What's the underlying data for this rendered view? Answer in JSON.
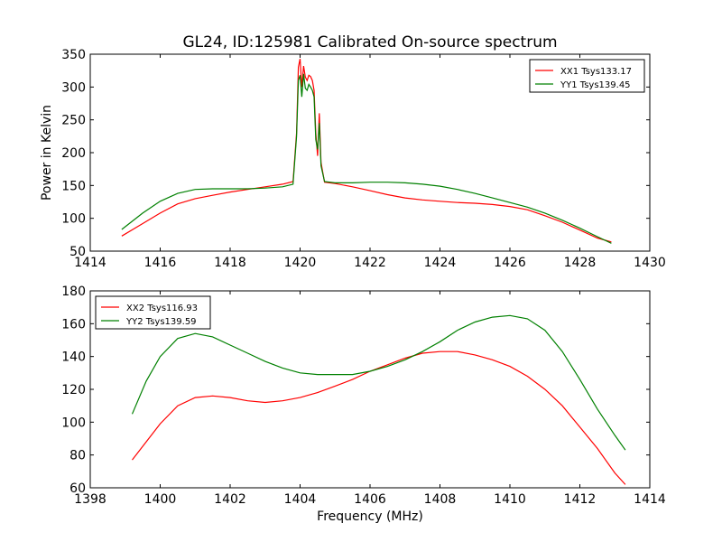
{
  "figure": {
    "title": "GL24, ID:125981 Calibrated On-source spectrum"
  },
  "chart_data": [
    {
      "type": "line",
      "title": "GL24, ID:125981 Calibrated On-source spectrum",
      "xlabel": "",
      "ylabel": "Power in Kelvin",
      "xlim": [
        1414,
        1430
      ],
      "ylim": [
        50,
        350
      ],
      "xticks": [
        "1414",
        "1416",
        "1418",
        "1420",
        "1422",
        "1424",
        "1426",
        "1428",
        "1430"
      ],
      "yticks": [
        "50",
        "100",
        "150",
        "200",
        "250",
        "300",
        "350"
      ],
      "legend_position": "upper right",
      "grid": false,
      "series": [
        {
          "name": "XX1 Tsys133.17",
          "color": "#ff0000",
          "x": [
            1414.9,
            1415.5,
            1416.0,
            1416.5,
            1417.0,
            1417.5,
            1418.0,
            1418.5,
            1419.0,
            1419.5,
            1419.8,
            1419.9,
            1419.95,
            1420.0,
            1420.05,
            1420.1,
            1420.15,
            1420.2,
            1420.25,
            1420.3,
            1420.35,
            1420.4,
            1420.45,
            1420.5,
            1420.55,
            1420.6,
            1420.7,
            1421.0,
            1421.5,
            1422.0,
            1422.5,
            1423.0,
            1423.5,
            1424.0,
            1424.5,
            1425.0,
            1425.5,
            1426.0,
            1426.5,
            1427.0,
            1427.5,
            1428.0,
            1428.5,
            1428.9
          ],
          "values": [
            73,
            92,
            108,
            122,
            130,
            135,
            140,
            144,
            148,
            152,
            156,
            230,
            330,
            343,
            300,
            332,
            315,
            310,
            318,
            316,
            310,
            295,
            230,
            195,
            260,
            185,
            155,
            153,
            148,
            142,
            136,
            131,
            128,
            126,
            124,
            123,
            121,
            118,
            113,
            104,
            94,
            82,
            70,
            64
          ]
        },
        {
          "name": "YY1 Tsys139.45",
          "color": "#008000",
          "x": [
            1414.9,
            1415.5,
            1416.0,
            1416.5,
            1417.0,
            1417.5,
            1418.0,
            1418.5,
            1419.0,
            1419.5,
            1419.8,
            1419.9,
            1419.95,
            1420.0,
            1420.05,
            1420.1,
            1420.15,
            1420.2,
            1420.25,
            1420.3,
            1420.35,
            1420.4,
            1420.45,
            1420.5,
            1420.55,
            1420.6,
            1420.7,
            1421.0,
            1421.5,
            1422.0,
            1422.5,
            1423.0,
            1423.5,
            1424.0,
            1424.5,
            1425.0,
            1425.5,
            1426.0,
            1426.5,
            1427.0,
            1427.5,
            1428.0,
            1428.5,
            1428.9
          ],
          "values": [
            83,
            108,
            126,
            138,
            144,
            145,
            145,
            145,
            146,
            148,
            152,
            225,
            310,
            318,
            285,
            320,
            298,
            295,
            304,
            300,
            295,
            285,
            220,
            205,
            245,
            180,
            156,
            154,
            154,
            155,
            155,
            154,
            152,
            149,
            144,
            138,
            131,
            124,
            117,
            108,
            97,
            85,
            72,
            62
          ]
        }
      ]
    },
    {
      "type": "line",
      "title": "",
      "xlabel": "Frequency (MHz)",
      "ylabel": "",
      "xlim": [
        1398,
        1414
      ],
      "ylim": [
        60,
        180
      ],
      "xticks": [
        "1398",
        "1400",
        "1402",
        "1404",
        "1406",
        "1408",
        "1410",
        "1412",
        "1414"
      ],
      "yticks": [
        "60",
        "80",
        "100",
        "120",
        "140",
        "160",
        "180"
      ],
      "legend_position": "upper left",
      "grid": false,
      "series": [
        {
          "name": "XX2 Tsys116.93",
          "color": "#ff0000",
          "x": [
            1399.2,
            1399.6,
            1400.0,
            1400.5,
            1401.0,
            1401.5,
            1402.0,
            1402.5,
            1403.0,
            1403.5,
            1404.0,
            1404.5,
            1405.0,
            1405.5,
            1406.0,
            1406.5,
            1407.0,
            1407.5,
            1408.0,
            1408.5,
            1409.0,
            1409.5,
            1410.0,
            1410.5,
            1411.0,
            1411.5,
            1412.0,
            1412.5,
            1413.0,
            1413.3
          ],
          "values": [
            77,
            88,
            99,
            110,
            115,
            116,
            115,
            113,
            112,
            113,
            115,
            118,
            122,
            126,
            131,
            135,
            139,
            142,
            143,
            143,
            141,
            138,
            134,
            128,
            120,
            110,
            97,
            84,
            69,
            62
          ]
        },
        {
          "name": "YY2 Tsys139.59",
          "color": "#008000",
          "x": [
            1399.2,
            1399.6,
            1400.0,
            1400.5,
            1401.0,
            1401.5,
            1402.0,
            1402.5,
            1403.0,
            1403.5,
            1404.0,
            1404.5,
            1405.0,
            1405.5,
            1406.0,
            1406.5,
            1407.0,
            1407.5,
            1408.0,
            1408.5,
            1409.0,
            1409.5,
            1410.0,
            1410.5,
            1411.0,
            1411.5,
            1412.0,
            1412.5,
            1413.0,
            1413.3
          ],
          "values": [
            105,
            125,
            140,
            151,
            154,
            152,
            147,
            142,
            137,
            133,
            130,
            129,
            129,
            129,
            131,
            134,
            138,
            143,
            149,
            156,
            161,
            164,
            165,
            163,
            156,
            143,
            126,
            108,
            92,
            83
          ]
        }
      ]
    }
  ]
}
